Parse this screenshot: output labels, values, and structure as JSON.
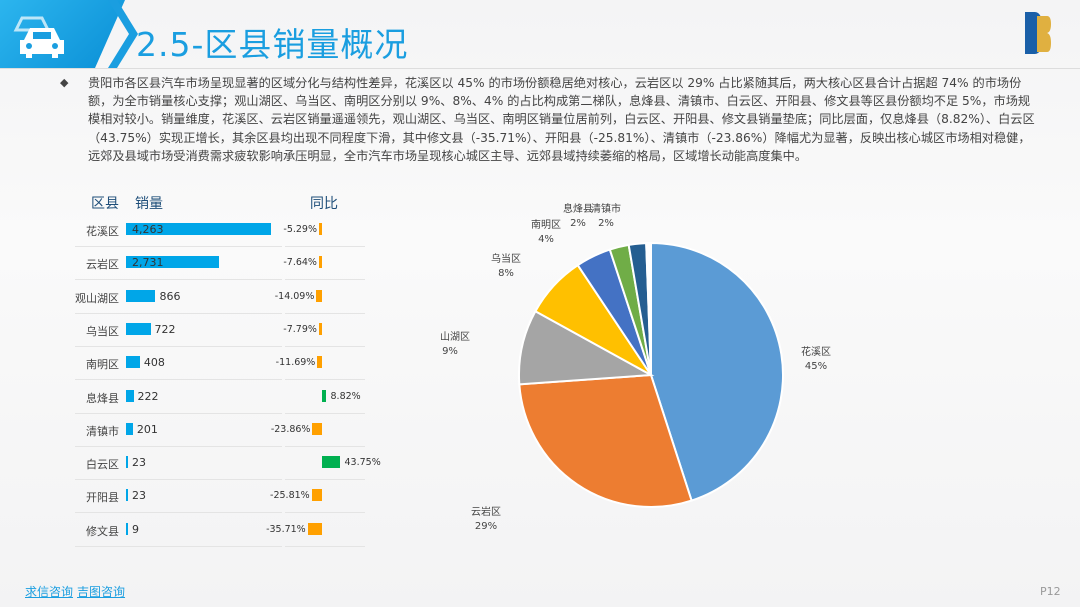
{
  "header": {
    "title": "2.5-区县销量概况",
    "logo_text": "DB",
    "icon": "car-icon"
  },
  "summary": "贵阳市各区县汽车市场呈现显著的区域分化与结构性差异，花溪区以 45% 的市场份额稳居绝对核心，云岩区以 29% 占比紧随其后，两大核心区县合计占据超 74% 的市场份额，为全市销量核心支撑；观山湖区、乌当区、南明区分别以 9%、8%、4% 的占比构成第二梯队，息烽县、清镇市、白云区、开阳县、修文县等区县份额均不足 5%，市场规模相对较小。销量维度，花溪区、云岩区销量遥遥领先，观山湖区、乌当区、南明区销量位居前列，白云区、开阳县、修文县销量垫底；同比层面，仅息烽县（8.82%）、白云区（43.75%）实现正增长，其余区县均出现不同程度下滑，其中修文县（-35.71%）、开阳县（-25.81%）、清镇市（-23.86%）降幅尤为显著，反映出核心城区市场相对稳健，远郊及县域市场受消费需求疲软影响承压明显，全市汽车市场呈现核心城区主导、远郊县域持续萎缩的格局，区域增长动能高度集中。",
  "table": {
    "headers": {
      "district": "区县",
      "sales": "销量",
      "yoy": "同比"
    },
    "rows": [
      {
        "district": "花溪区",
        "sales": 4263,
        "sales_label": "4,263",
        "yoy": -5.29,
        "yoy_label": "-5.29%"
      },
      {
        "district": "云岩区",
        "sales": 2731,
        "sales_label": "2,731",
        "yoy": -7.64,
        "yoy_label": "-7.64%"
      },
      {
        "district": "观山湖区",
        "sales": 866,
        "sales_label": "866",
        "yoy": -14.09,
        "yoy_label": "-14.09%"
      },
      {
        "district": "乌当区",
        "sales": 722,
        "sales_label": "722",
        "yoy": -7.79,
        "yoy_label": "-7.79%"
      },
      {
        "district": "南明区",
        "sales": 408,
        "sales_label": "408",
        "yoy": -11.69,
        "yoy_label": "-11.69%"
      },
      {
        "district": "息烽县",
        "sales": 222,
        "sales_label": "222",
        "yoy": 8.82,
        "yoy_label": "8.82%"
      },
      {
        "district": "清镇市",
        "sales": 201,
        "sales_label": "201",
        "yoy": -23.86,
        "yoy_label": "-23.86%"
      },
      {
        "district": "白云区",
        "sales": 23,
        "sales_label": "23",
        "yoy": 43.75,
        "yoy_label": "43.75%"
      },
      {
        "district": "开阳县",
        "sales": 23,
        "sales_label": "23",
        "yoy": -25.81,
        "yoy_label": "-25.81%"
      },
      {
        "district": "修文县",
        "sales": 9,
        "sales_label": "9",
        "yoy": -35.71,
        "yoy_label": "-35.71%"
      }
    ],
    "colors": {
      "sales": "#00a6e8",
      "positive": "#00b050",
      "negative": "#ffa000"
    }
  },
  "chart_data": {
    "type": "pie",
    "categories": [
      "花溪区",
      "云岩区",
      "观山湖区",
      "乌当区",
      "南明区",
      "息烽县",
      "清镇市",
      "白云区",
      "开阳县",
      "修文县"
    ],
    "values": [
      4263,
      2731,
      866,
      722,
      408,
      222,
      201,
      23,
      23,
      9
    ],
    "labels": [
      "45%",
      "29%",
      "9%",
      "8%",
      "4%",
      "2%",
      "2%",
      "",
      "",
      ""
    ],
    "colors": [
      "#5b9bd5",
      "#ed7d31",
      "#a5a5a5",
      "#ffc000",
      "#4472c4",
      "#70ad47",
      "#255e91",
      "#9e480e",
      "#636363",
      "#997300"
    ]
  },
  "footer": {
    "links": [
      "求信咨询",
      "吉图咨询"
    ],
    "page": "P12"
  }
}
